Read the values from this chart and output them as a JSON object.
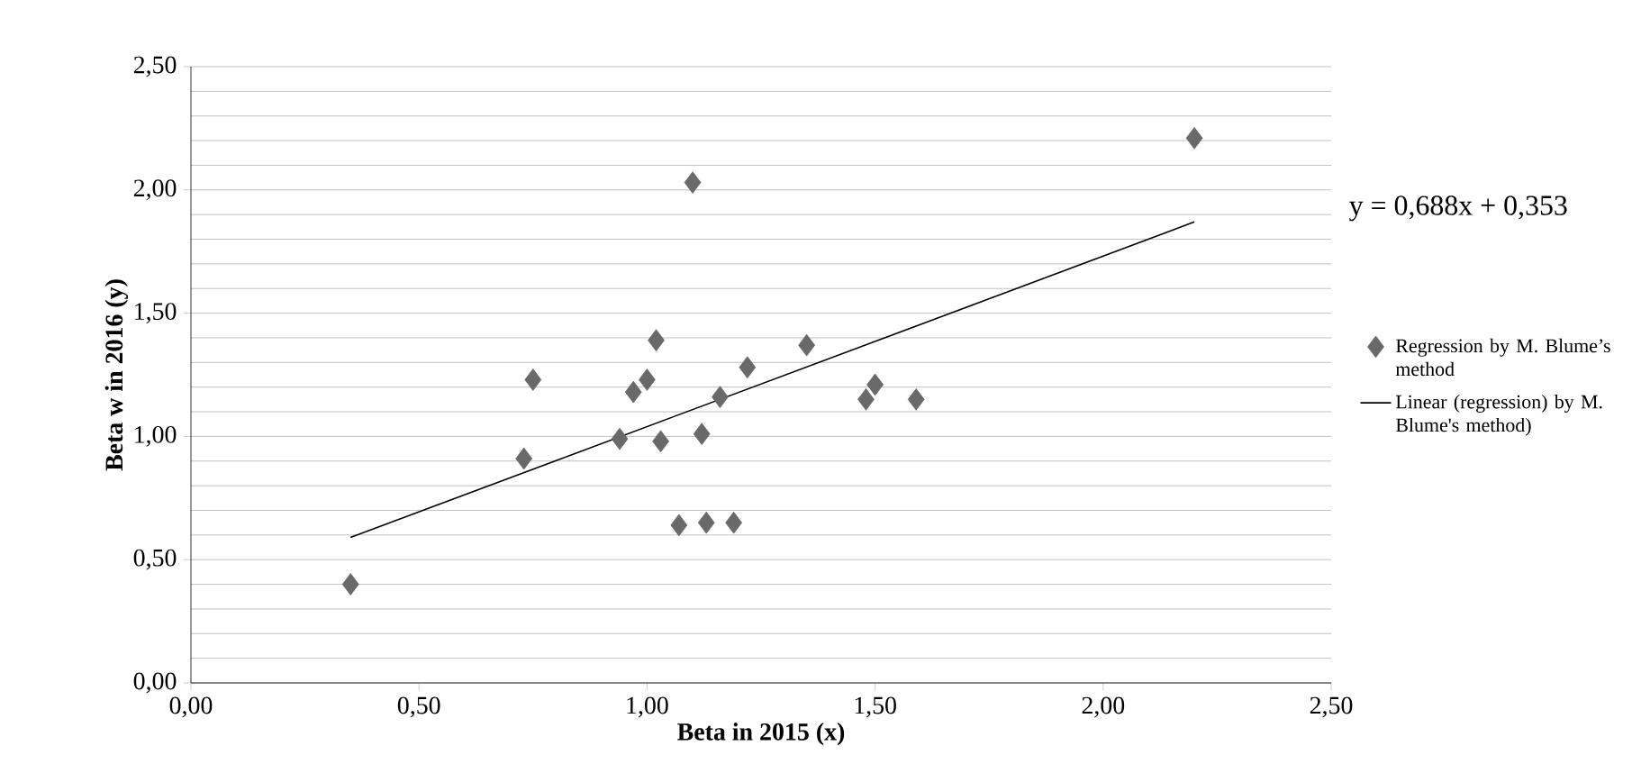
{
  "chart_data": {
    "type": "scatter",
    "xlabel": "Beta in 2015 (x)",
    "ylabel": "Beta w in 2016 (y)",
    "xlim": [
      0,
      2.5
    ],
    "ylim": [
      0,
      2.5
    ],
    "xticks": [
      {
        "value": 0,
        "label": "0,00"
      },
      {
        "value": 0.5,
        "label": "0,50"
      },
      {
        "value": 1,
        "label": "1,00"
      },
      {
        "value": 1.5,
        "label": "1,50"
      },
      {
        "value": 2,
        "label": "2,00"
      },
      {
        "value": 2.5,
        "label": "2,50"
      }
    ],
    "yticks": [
      {
        "value": 0,
        "label": "0,00"
      },
      {
        "value": 0.5,
        "label": "0,50"
      },
      {
        "value": 1,
        "label": "1,00"
      },
      {
        "value": 1.5,
        "label": "1,50"
      },
      {
        "value": 2,
        "label": "2,00"
      },
      {
        "value": 2.5,
        "label": "2,50"
      }
    ],
    "grid": "y",
    "legend": "right",
    "marker": "diamond",
    "annotations": [
      "y = 0,688x + 0,353"
    ],
    "series": [
      {
        "name": "Regression by M. Blume’s method",
        "color": "#696969",
        "x": [
          0.35,
          0.73,
          0.75,
          0.94,
          0.97,
          1.0,
          1.02,
          1.03,
          1.07,
          1.1,
          1.12,
          1.13,
          1.16,
          1.19,
          1.22,
          1.35,
          1.48,
          1.5,
          1.59,
          2.2
        ],
        "values": [
          0.4,
          0.91,
          1.23,
          0.99,
          1.18,
          1.23,
          1.39,
          0.98,
          0.64,
          2.03,
          1.01,
          0.65,
          1.16,
          0.65,
          1.28,
          1.37,
          1.15,
          1.21,
          1.15,
          2.21
        ]
      },
      {
        "name": "Linear (regression) by M. Blume's method)",
        "color": "#000000",
        "type": "line",
        "marker": "none",
        "x": [
          0.35,
          2.2
        ],
        "values": [
          0.59,
          1.87
        ]
      }
    ]
  }
}
